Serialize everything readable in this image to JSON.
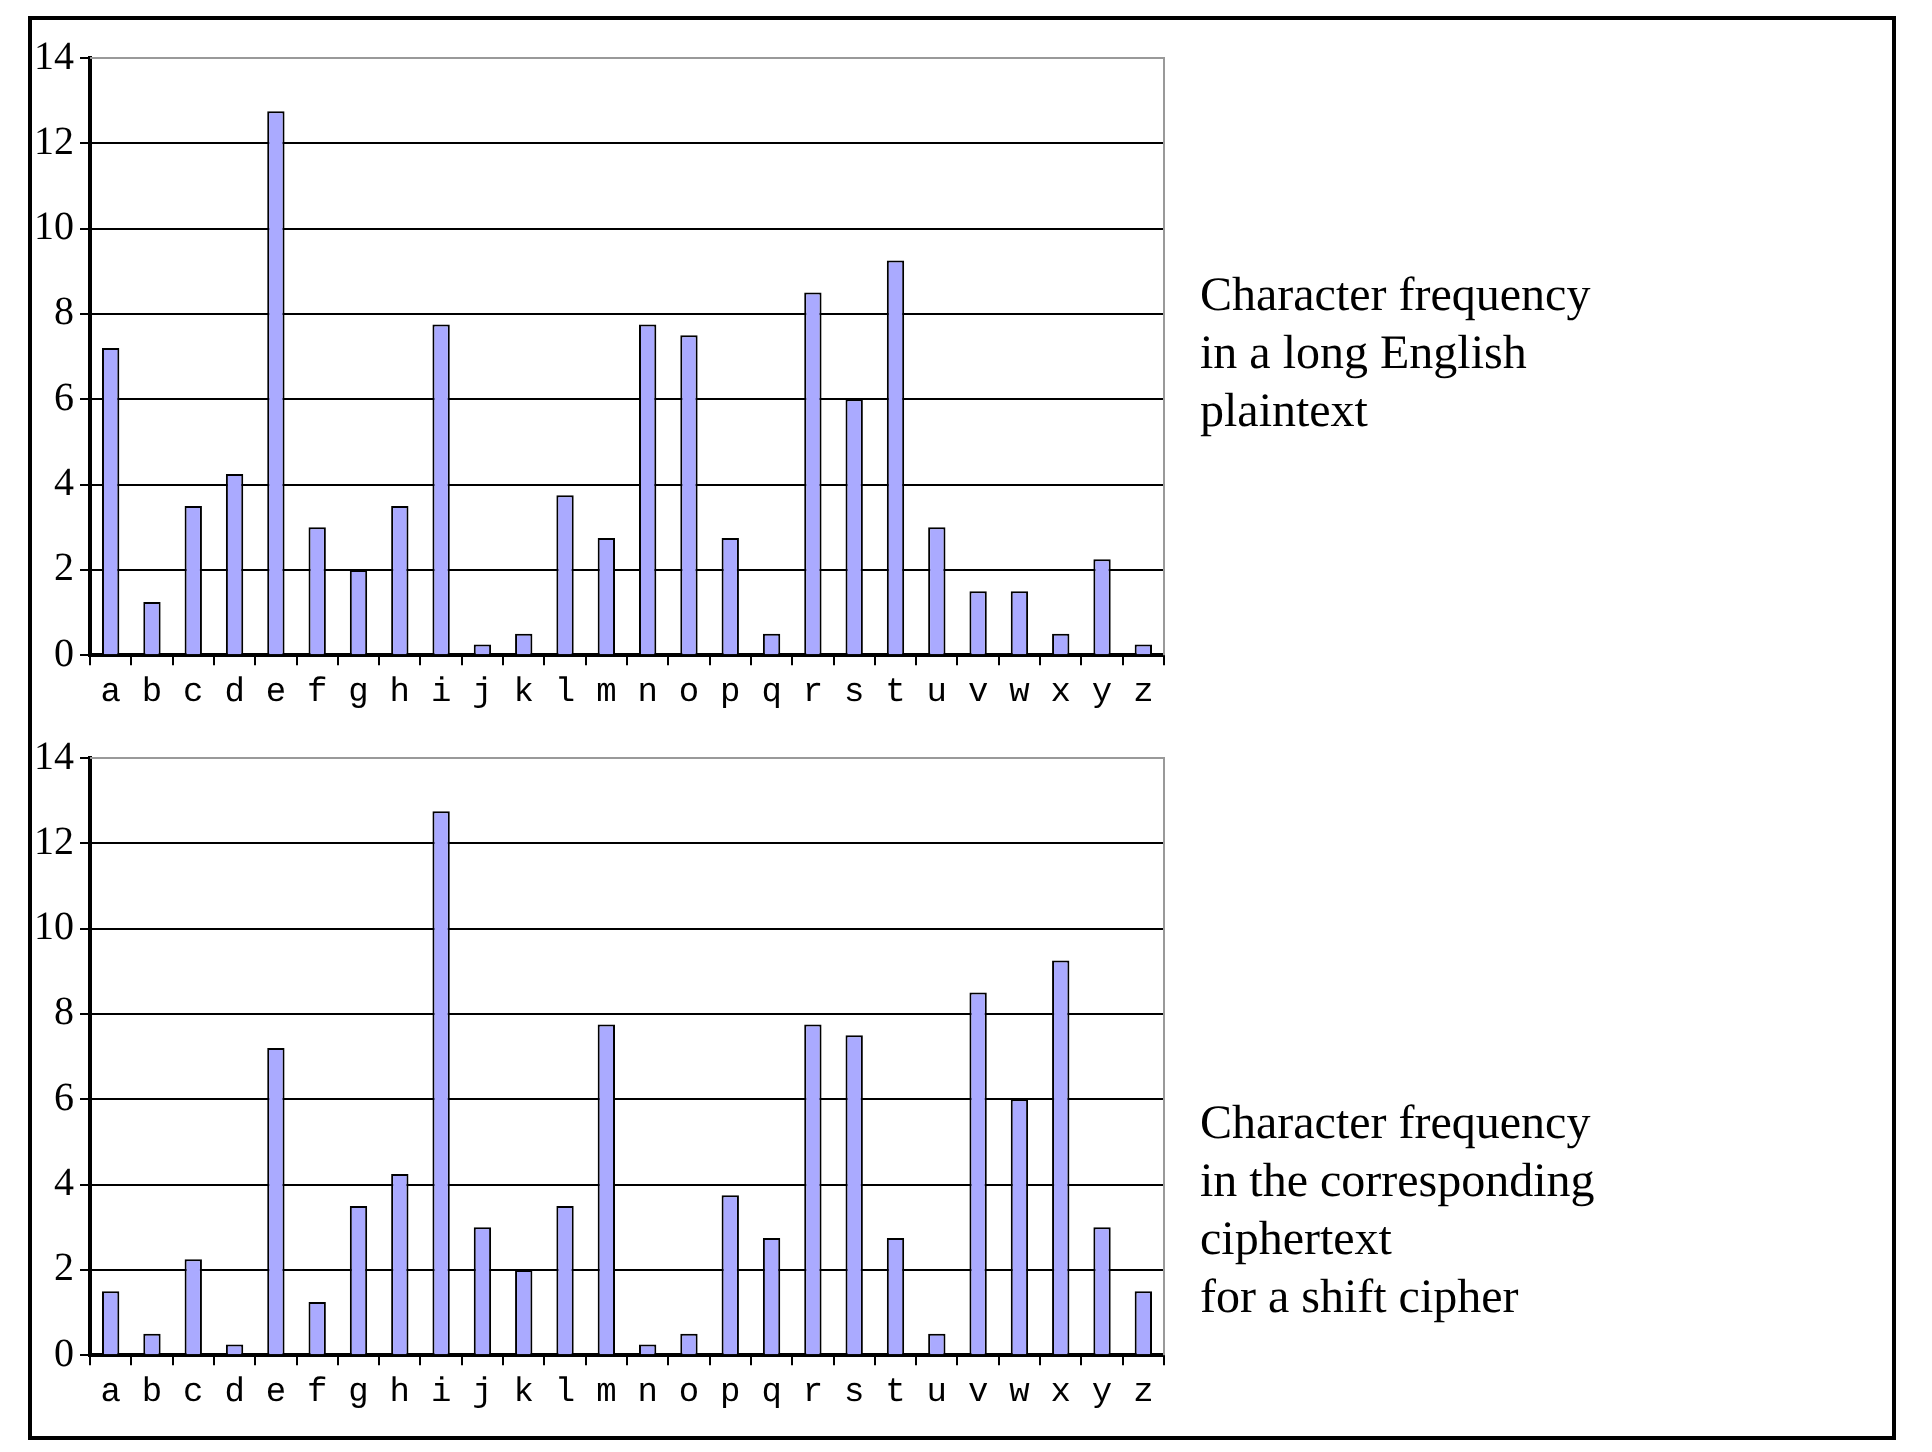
{
  "chart_data": [
    {
      "type": "bar",
      "categories": [
        "a",
        "b",
        "c",
        "d",
        "e",
        "f",
        "g",
        "h",
        "i",
        "j",
        "k",
        "l",
        "m",
        "n",
        "o",
        "p",
        "q",
        "r",
        "s",
        "t",
        "u",
        "v",
        "w",
        "x",
        "y",
        "z"
      ],
      "values": [
        7.2,
        1.25,
        3.5,
        4.25,
        12.75,
        3,
        2,
        3.5,
        7.75,
        0.25,
        0.5,
        3.75,
        2.75,
        7.75,
        7.5,
        2.75,
        0.5,
        8.5,
        6,
        9.25,
        3,
        1.5,
        1.5,
        0.5,
        2.25,
        0.25
      ],
      "color": "#aaaaff",
      "ylim": [
        0,
        14
      ],
      "yticks": [
        0,
        2,
        4,
        6,
        8,
        10,
        12,
        14
      ],
      "grid": "y",
      "legend": false,
      "annotations": [
        "Character frequency",
        "in a long English",
        "plaintext"
      ]
    },
    {
      "type": "bar",
      "categories": [
        "a",
        "b",
        "c",
        "d",
        "e",
        "f",
        "g",
        "h",
        "i",
        "j",
        "k",
        "l",
        "m",
        "n",
        "o",
        "p",
        "q",
        "r",
        "s",
        "t",
        "u",
        "v",
        "w",
        "x",
        "y",
        "z"
      ],
      "values": [
        1.5,
        0.5,
        2.25,
        0.25,
        7.2,
        1.25,
        3.5,
        4.25,
        12.75,
        3,
        2,
        3.5,
        7.75,
        0.25,
        0.5,
        3.75,
        2.75,
        7.75,
        7.5,
        2.75,
        0.5,
        8.5,
        6,
        9.25,
        3,
        1.5
      ],
      "color": "#aaaaff",
      "ylim": [
        0,
        14
      ],
      "yticks": [
        0,
        2,
        4,
        6,
        8,
        10,
        12,
        14
      ],
      "grid": "y",
      "legend": false,
      "annotations": [
        "Character frequency",
        "in the corresponding",
        "ciphertext",
        "for a shift cipher"
      ]
    }
  ]
}
